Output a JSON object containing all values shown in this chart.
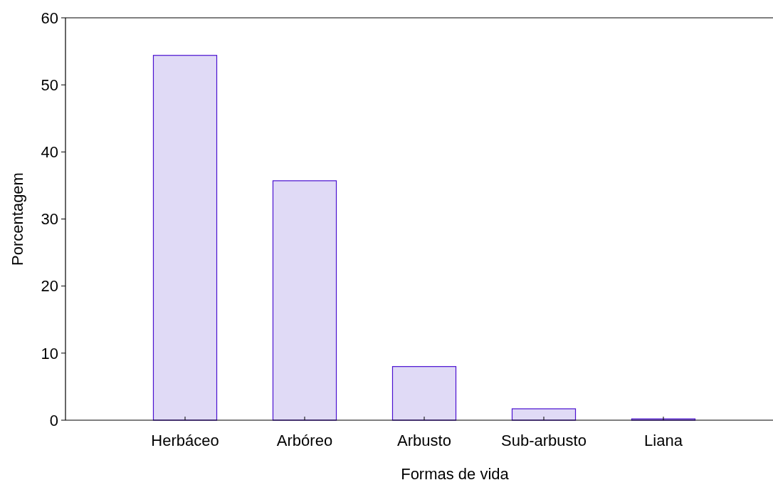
{
  "chart_data": {
    "type": "bar",
    "xlabel": "Formas de vida",
    "ylabel": "Porcentagem",
    "categories": [
      "Herbáceo",
      "Arbóreo",
      "Arbusto",
      "Sub-arbusto",
      "Liana"
    ],
    "values": [
      54.4,
      35.7,
      8.0,
      1.7,
      0.2
    ],
    "color": "#e0daf6",
    "ylim": [
      0,
      60
    ],
    "yticks": [
      0,
      10,
      20,
      30,
      40,
      50,
      60
    ],
    "grid": false
  }
}
